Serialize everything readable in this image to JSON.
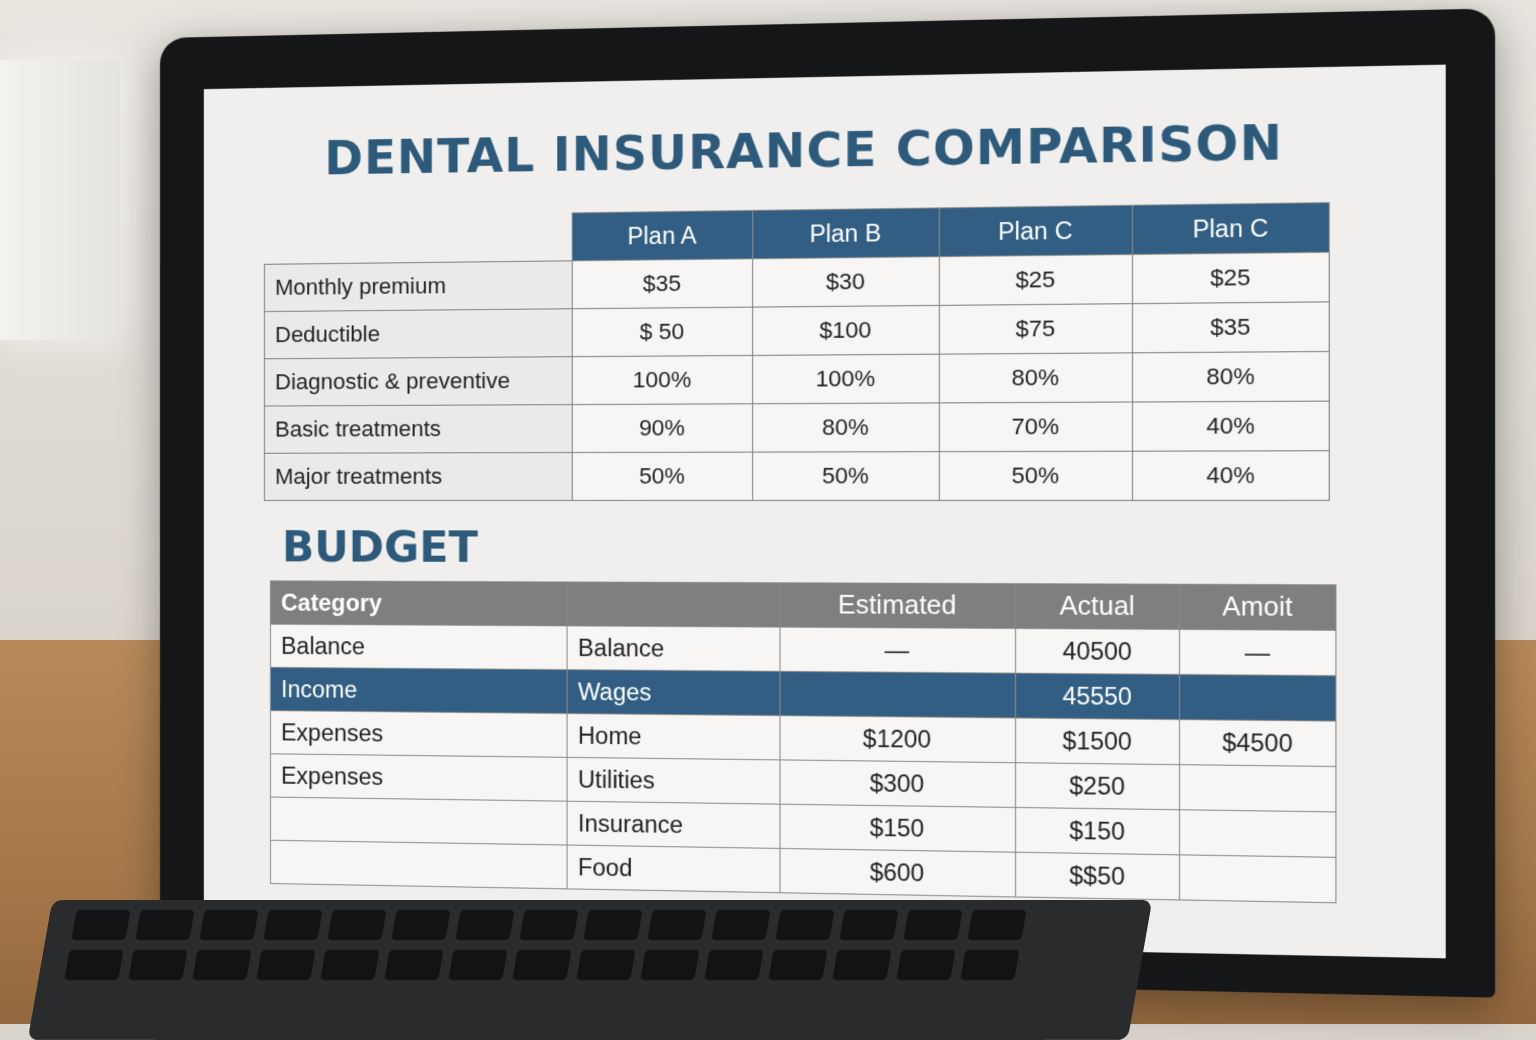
{
  "insurance": {
    "title": "DENTAL INSURANCE COMPARISON",
    "plans": [
      "Plan A",
      "Plan B",
      "Plan C",
      "Plan C"
    ],
    "rows": [
      {
        "label": "Monthly premium",
        "values": [
          "$35",
          "$30",
          "$25",
          "$25"
        ]
      },
      {
        "label": "Deductible",
        "values": [
          "$ 50",
          "$100",
          "$75",
          "$35"
        ]
      },
      {
        "label": "Diagnostic & preventive",
        "values": [
          "100%",
          "100%",
          "80%",
          "80%"
        ]
      },
      {
        "label": "Basic treatments",
        "values": [
          "90%",
          "80%",
          "70%",
          "40%"
        ]
      },
      {
        "label": "Major treatments",
        "values": [
          "50%",
          "50%",
          "50%",
          "40%"
        ]
      }
    ]
  },
  "budget": {
    "title": "BUDGET",
    "category_label": "Category",
    "col_estimated": "Estimated",
    "col_actual": "Actual",
    "col_amount": "Amoit",
    "left_labels": [
      "Balance",
      "Income",
      "Expenses",
      "Expenses"
    ],
    "rows": [
      {
        "sub": "Balance",
        "estimated": "—",
        "actual": "40500",
        "amount": "—"
      },
      {
        "sub": "Wages",
        "estimated": "",
        "actual": "45550",
        "amount": ""
      },
      {
        "sub": "Home",
        "estimated": "$1200",
        "actual": "$1500",
        "amount": "$4500"
      },
      {
        "sub": "Utilities",
        "estimated": "$300",
        "actual": "$250",
        "amount": ""
      },
      {
        "sub": "Insurance",
        "estimated": "$150",
        "actual": "$150",
        "amount": ""
      },
      {
        "sub": "Food",
        "estimated": "$600",
        "actual": "$$50",
        "amount": ""
      }
    ]
  },
  "keyboard": {
    "keys": [
      "",
      "",
      "",
      "",
      "",
      "",
      "",
      "",
      "",
      "",
      "",
      "",
      "",
      "",
      "",
      ""
    ]
  }
}
